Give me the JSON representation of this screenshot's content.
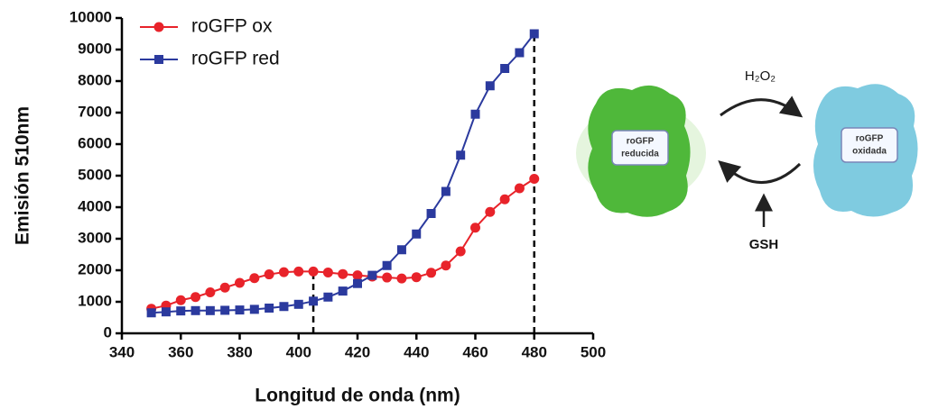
{
  "chart_data": {
    "type": "line",
    "x_label": "Longitud de onda (nm)",
    "y_label": "Emisión 510nm",
    "x": [
      350,
      355,
      360,
      365,
      370,
      375,
      380,
      385,
      390,
      395,
      400,
      405,
      410,
      415,
      420,
      425,
      430,
      435,
      440,
      445,
      450,
      455,
      460,
      465,
      470,
      475,
      480
    ],
    "series": [
      {
        "name": "roGFP ox",
        "color": "#e8232a",
        "marker": "circle",
        "values": [
          780,
          880,
          1050,
          1150,
          1300,
          1450,
          1600,
          1750,
          1870,
          1940,
          1960,
          1960,
          1930,
          1880,
          1840,
          1800,
          1770,
          1740,
          1780,
          1920,
          2150,
          2600,
          3350,
          3850,
          4250,
          4600,
          4900
        ]
      },
      {
        "name": "roGFP red",
        "color": "#2b3a9e",
        "marker": "square",
        "values": [
          650,
          680,
          710,
          720,
          720,
          730,
          740,
          760,
          800,
          850,
          920,
          1020,
          1150,
          1340,
          1580,
          1840,
          2150,
          2650,
          3150,
          3800,
          4500,
          5650,
          6950,
          7850,
          8400,
          8900,
          9500
        ]
      }
    ],
    "vlines": [
      405,
      480
    ],
    "xlim": [
      340,
      500
    ],
    "xticks": [
      340,
      360,
      380,
      400,
      420,
      440,
      460,
      480,
      500
    ],
    "ylim": [
      0,
      10000
    ],
    "yticks": [
      0,
      1000,
      2000,
      3000,
      4000,
      5000,
      6000,
      7000,
      8000,
      9000,
      10000
    ],
    "legend": "upper left"
  },
  "diagram": {
    "nodes": [
      {
        "lines": [
          "roGFP",
          "reducida"
        ]
      },
      {
        "lines": [
          "roGFP",
          "oxidada"
        ]
      }
    ],
    "arrows": [
      {
        "label": "H₂O₂"
      },
      {
        "label": "GSH"
      }
    ]
  }
}
